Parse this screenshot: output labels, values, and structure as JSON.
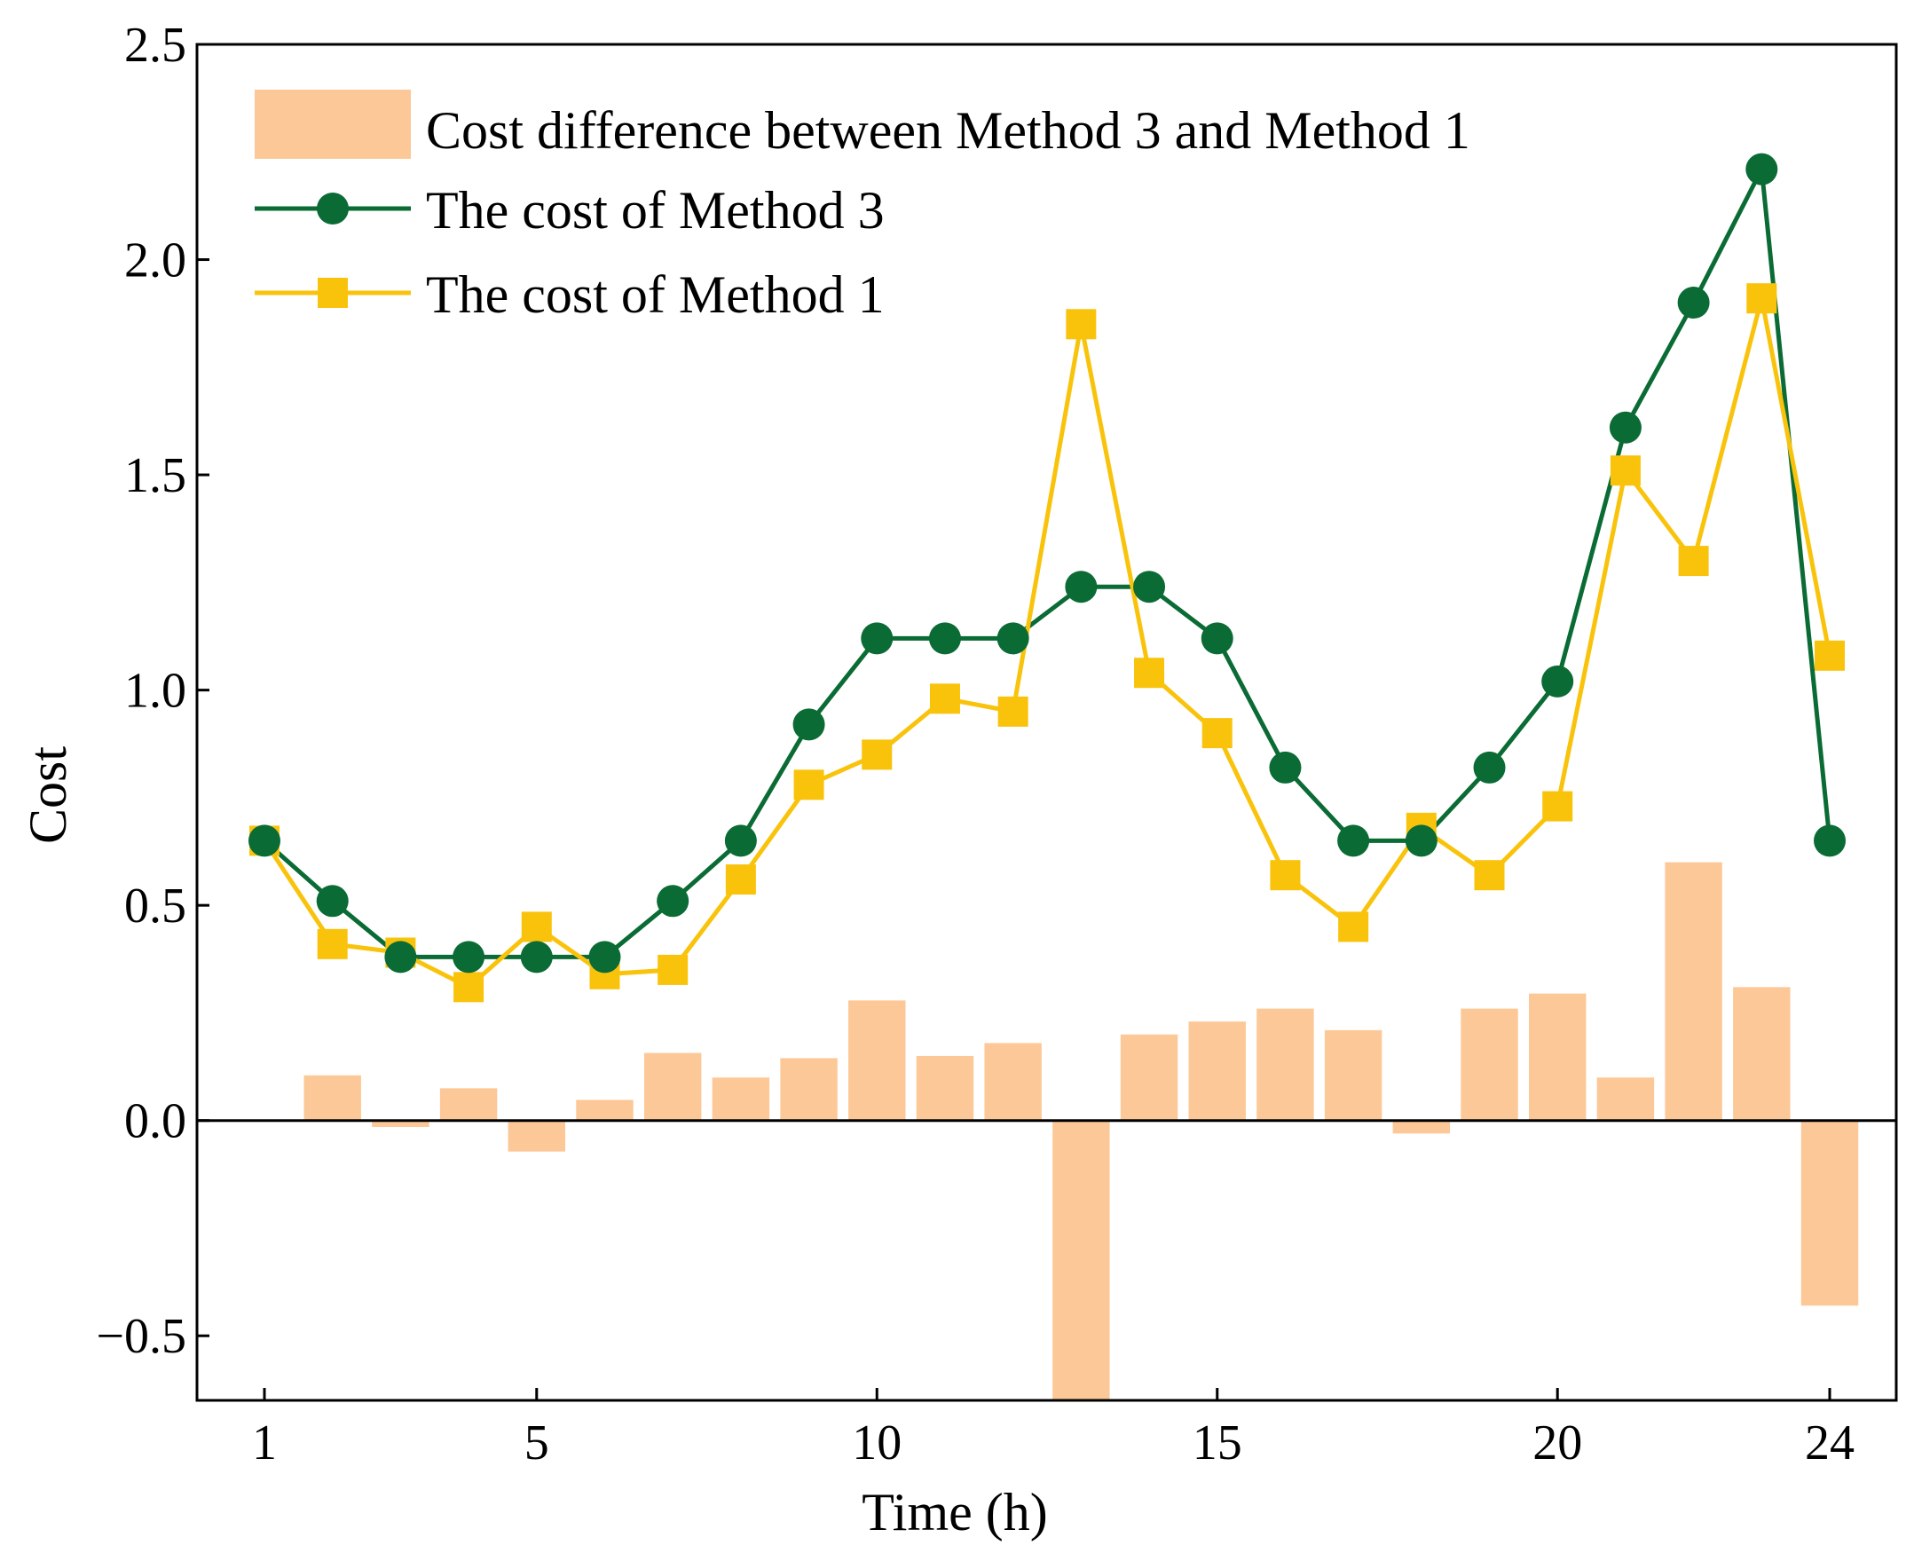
{
  "chart_data": {
    "type": "bar+line",
    "xlabel": "Time (h)",
    "ylabel": "Cost",
    "xlim": [
      0,
      24.5
    ],
    "ylim": [
      -0.65,
      2.5
    ],
    "x_ticks": [
      1,
      5,
      10,
      15,
      20,
      24
    ],
    "x_tick_labels": [
      "1",
      "5",
      "10",
      "15",
      "20",
      "24"
    ],
    "y_ticks": [
      -0.5,
      0.0,
      0.5,
      1.0,
      1.5,
      2.0,
      2.5
    ],
    "y_tick_labels": [
      "−0.5",
      "0.0",
      "0.5",
      "1.0",
      "1.5",
      "2.0",
      "2.5"
    ],
    "grid": false,
    "legend_position": "top-left",
    "x": [
      1,
      2,
      3,
      4,
      5,
      6,
      7,
      8,
      9,
      10,
      11,
      12,
      13,
      14,
      15,
      16,
      17,
      18,
      19,
      20,
      21,
      22,
      23,
      24
    ],
    "series": [
      {
        "name": "Cost difference between Method 3 and Method 1",
        "kind": "bar",
        "color": "#FDC897",
        "values": [
          0.0,
          0.105,
          -0.015,
          0.075,
          -0.072,
          0.048,
          0.157,
          0.1,
          0.145,
          0.279,
          0.15,
          0.18,
          -0.65,
          0.2,
          0.23,
          0.26,
          0.21,
          -0.03,
          0.26,
          0.295,
          0.1,
          0.6,
          0.31,
          -0.43
        ]
      },
      {
        "name": "The cost of Method 3",
        "kind": "line",
        "marker": "circle",
        "color": "#0B6B35",
        "values": [
          0.65,
          0.51,
          0.38,
          0.38,
          0.38,
          0.38,
          0.51,
          0.65,
          0.92,
          1.12,
          1.12,
          1.12,
          1.24,
          1.24,
          1.12,
          0.82,
          0.65,
          0.65,
          0.82,
          1.02,
          1.61,
          1.9,
          2.21,
          0.65
        ]
      },
      {
        "name": "The cost of Method 1",
        "kind": "line",
        "marker": "square",
        "color": "#F9C30C",
        "values": [
          0.65,
          0.41,
          0.39,
          0.31,
          0.45,
          0.34,
          0.35,
          0.56,
          0.78,
          0.85,
          0.98,
          0.95,
          1.85,
          1.04,
          0.9,
          0.57,
          0.45,
          0.68,
          0.57,
          0.73,
          1.51,
          1.3,
          1.91,
          1.08
        ]
      }
    ]
  }
}
